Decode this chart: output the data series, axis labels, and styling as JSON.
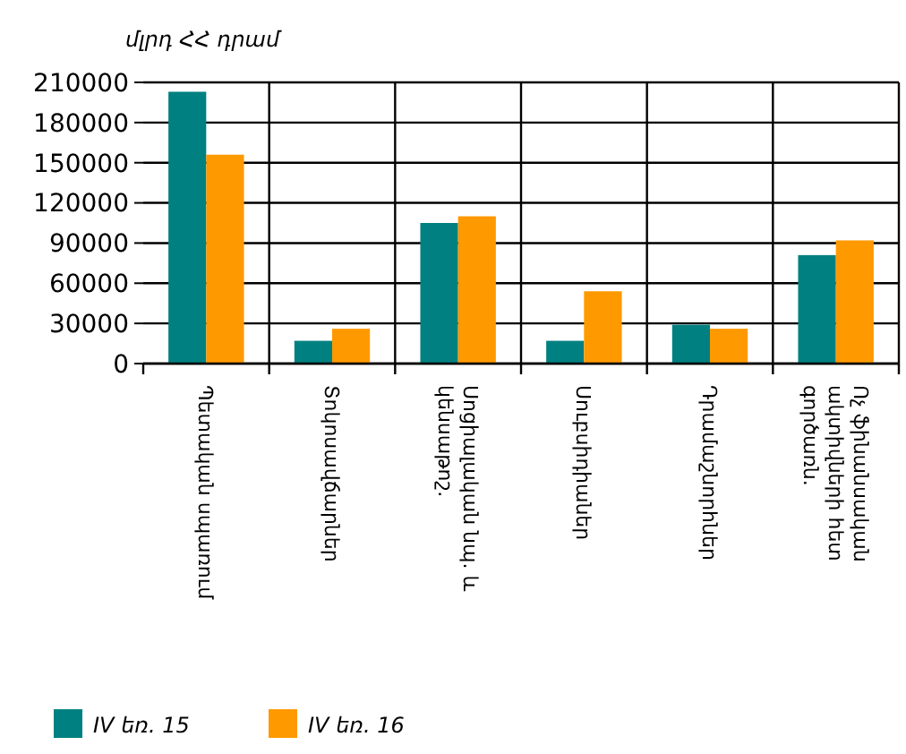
{
  "chart_data": {
    "type": "bar",
    "ylabel": "մլրդ ՀՀ դրամ",
    "categories": [
      "Պետական սպառում",
      "Տոկոսավճարներ",
      "Սոցիալական նպ. և կենսաթոշ.",
      "Սուբսիդիաներ",
      "Դրամաշնորհներ",
      "Ոչ ֆինանսական ակտիվների հետ գործառն."
    ],
    "series": [
      {
        "name": "IV եռ. 15",
        "color": "#008080",
        "values": [
          203000,
          17000,
          105000,
          17000,
          29000,
          81000
        ]
      },
      {
        "name": "IV եռ. 16",
        "color": "#ff9900",
        "values": [
          156000,
          26000,
          110000,
          54000,
          26000,
          92000
        ]
      }
    ],
    "ylim": [
      0,
      210000
    ],
    "yticks": [
      0,
      30000,
      60000,
      90000,
      120000,
      150000,
      180000,
      210000
    ],
    "grid": true,
    "legend": "bottom left"
  }
}
